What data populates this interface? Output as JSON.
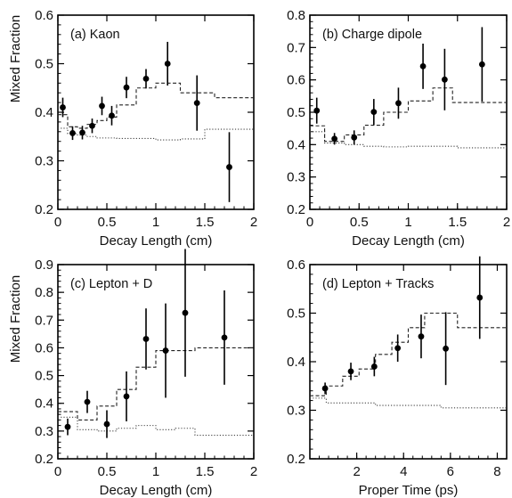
{
  "figure": {
    "ylabel_top": "Mixed Fraction",
    "ylabel_bottom": "Mixed Fraction"
  },
  "chart_data": [
    {
      "type": "scatter",
      "title": "(a) Kaon",
      "xlabel": "Decay Length  (cm)",
      "ylabel": "Mixed Fraction",
      "xlim": [
        0,
        2
      ],
      "ylim": [
        0.2,
        0.6
      ],
      "xticks": [
        0,
        0.5,
        1,
        1.5,
        2
      ],
      "xtick_labels": [
        "0",
        "0.5",
        "1",
        "1.5",
        "2"
      ],
      "yticks": [
        0.2,
        0.3,
        0.4,
        0.5,
        0.6
      ],
      "ytick_labels": [
        "0.2",
        "0.3",
        "0.4",
        "0.5",
        "0.6"
      ],
      "points": {
        "x": [
          0.05,
          0.15,
          0.25,
          0.35,
          0.45,
          0.55,
          0.7,
          0.9,
          1.12,
          1.42,
          1.75
        ],
        "y": [
          0.41,
          0.357,
          0.358,
          0.372,
          0.413,
          0.393,
          0.451,
          0.469,
          0.5,
          0.419,
          0.287
        ],
        "err": [
          0.02,
          0.014,
          0.014,
          0.015,
          0.019,
          0.02,
          0.022,
          0.02,
          0.045,
          0.057,
          0.072
        ]
      },
      "dashed_step": {
        "edges": [
          0,
          0.1,
          0.2,
          0.3,
          0.4,
          0.5,
          0.6,
          0.8,
          1.0,
          1.25,
          1.6,
          2.0
        ],
        "values": [
          0.395,
          0.37,
          0.367,
          0.375,
          0.383,
          0.39,
          0.415,
          0.45,
          0.46,
          0.44,
          0.43
        ]
      },
      "dotted_step": {
        "edges": [
          0,
          0.1,
          0.2,
          0.3,
          0.4,
          0.6,
          1.0,
          1.25,
          1.5,
          2.0
        ],
        "values": [
          0.367,
          0.356,
          0.353,
          0.35,
          0.347,
          0.346,
          0.343,
          0.345,
          0.365
        ]
      }
    },
    {
      "type": "scatter",
      "title": "(b) Charge dipole",
      "xlabel": "Decay Length  (cm)",
      "ylabel": "",
      "xlim": [
        0,
        2
      ],
      "ylim": [
        0.2,
        0.8
      ],
      "xticks": [
        0,
        0.5,
        1,
        1.5,
        2
      ],
      "xtick_labels": [
        "0",
        "0.5",
        "1",
        "1.5",
        "2"
      ],
      "yticks": [
        0.2,
        0.3,
        0.4,
        0.5,
        0.6,
        0.7,
        0.8
      ],
      "ytick_labels": [
        "0.2",
        "0.3",
        "0.4",
        "0.5",
        "0.6",
        "0.7",
        "0.8"
      ],
      "points": {
        "x": [
          0.07,
          0.25,
          0.45,
          0.65,
          0.9,
          1.15,
          1.37,
          1.75
        ],
        "y": [
          0.505,
          0.418,
          0.422,
          0.501,
          0.528,
          0.642,
          0.601,
          0.648
        ],
        "err": [
          0.04,
          0.018,
          0.022,
          0.04,
          0.048,
          0.07,
          0.095,
          0.115
        ]
      },
      "dashed_step": {
        "edges": [
          0,
          0.15,
          0.35,
          0.55,
          0.75,
          1.0,
          1.25,
          1.45,
          2.0
        ],
        "values": [
          0.458,
          0.41,
          0.43,
          0.46,
          0.5,
          0.535,
          0.575,
          0.53
        ]
      },
      "dotted_step": {
        "edges": [
          0,
          0.15,
          0.35,
          0.55,
          0.75,
          1.0,
          1.5,
          2.0
        ],
        "values": [
          0.44,
          0.405,
          0.4,
          0.395,
          0.393,
          0.395,
          0.39
        ]
      }
    },
    {
      "type": "scatter",
      "title": "(c) Lepton + D",
      "xlabel": "Decay Length  (cm)",
      "ylabel": "Mixed Fraction",
      "xlim": [
        0,
        2
      ],
      "ylim": [
        0.2,
        0.9
      ],
      "xticks": [
        0,
        0.5,
        1,
        1.5,
        2
      ],
      "xtick_labels": [
        "0",
        "0.5",
        "1",
        "1.5",
        "2"
      ],
      "yticks": [
        0.2,
        0.3,
        0.4,
        0.5,
        0.6,
        0.7,
        0.8,
        0.9
      ],
      "ytick_labels": [
        "0.2",
        "0.3",
        "0.4",
        "0.5",
        "0.6",
        "0.7",
        "0.8",
        "0.9"
      ],
      "points": {
        "x": [
          0.1,
          0.3,
          0.5,
          0.7,
          0.9,
          1.1,
          1.3,
          1.7
        ],
        "y": [
          0.315,
          0.405,
          0.325,
          0.425,
          0.632,
          0.59,
          0.726,
          0.637
        ],
        "err": [
          0.03,
          0.04,
          0.05,
          0.09,
          0.11,
          0.17,
          0.23,
          0.17
        ]
      },
      "dashed_step": {
        "edges": [
          0,
          0.2,
          0.4,
          0.6,
          0.8,
          1.0,
          1.2,
          1.4,
          2.0
        ],
        "values": [
          0.37,
          0.34,
          0.39,
          0.45,
          0.53,
          0.59,
          0.59,
          0.6
        ]
      },
      "dotted_step": {
        "edges": [
          0,
          0.2,
          0.4,
          0.6,
          0.8,
          1.0,
          1.2,
          1.4,
          2.0
        ],
        "values": [
          0.35,
          0.305,
          0.3,
          0.31,
          0.32,
          0.305,
          0.31,
          0.285
        ]
      }
    },
    {
      "type": "scatter",
      "title": "(d) Lepton + Tracks",
      "xlabel": "Proper Time  (ps)",
      "ylabel": "",
      "xlim": [
        0,
        8.4
      ],
      "ylim": [
        0.2,
        0.6
      ],
      "xticks": [
        2,
        4,
        6,
        8
      ],
      "xtick_labels": [
        "2",
        "4",
        "6",
        "8"
      ],
      "yticks": [
        0.2,
        0.3,
        0.4,
        0.5,
        0.6
      ],
      "ytick_labels": [
        "0.2",
        "0.3",
        "0.4",
        "0.5",
        "0.6"
      ],
      "points": {
        "x": [
          0.65,
          1.75,
          2.75,
          3.75,
          4.75,
          5.8,
          7.25
        ],
        "y": [
          0.345,
          0.38,
          0.39,
          0.428,
          0.452,
          0.427,
          0.532
        ],
        "err": [
          0.012,
          0.018,
          0.02,
          0.028,
          0.045,
          0.075,
          0.085
        ]
      },
      "dashed_step": {
        "edges": [
          0,
          0.7,
          1.4,
          2.1,
          2.8,
          3.5,
          4.2,
          4.9,
          5.6,
          6.3,
          8.4
        ],
        "values": [
          0.33,
          0.35,
          0.37,
          0.385,
          0.415,
          0.44,
          0.47,
          0.5,
          0.5,
          0.47
        ]
      },
      "dotted_step": {
        "edges": [
          0,
          0.7,
          2.8,
          5.6,
          8.4
        ],
        "values": [
          0.325,
          0.315,
          0.31,
          0.305
        ]
      }
    }
  ]
}
